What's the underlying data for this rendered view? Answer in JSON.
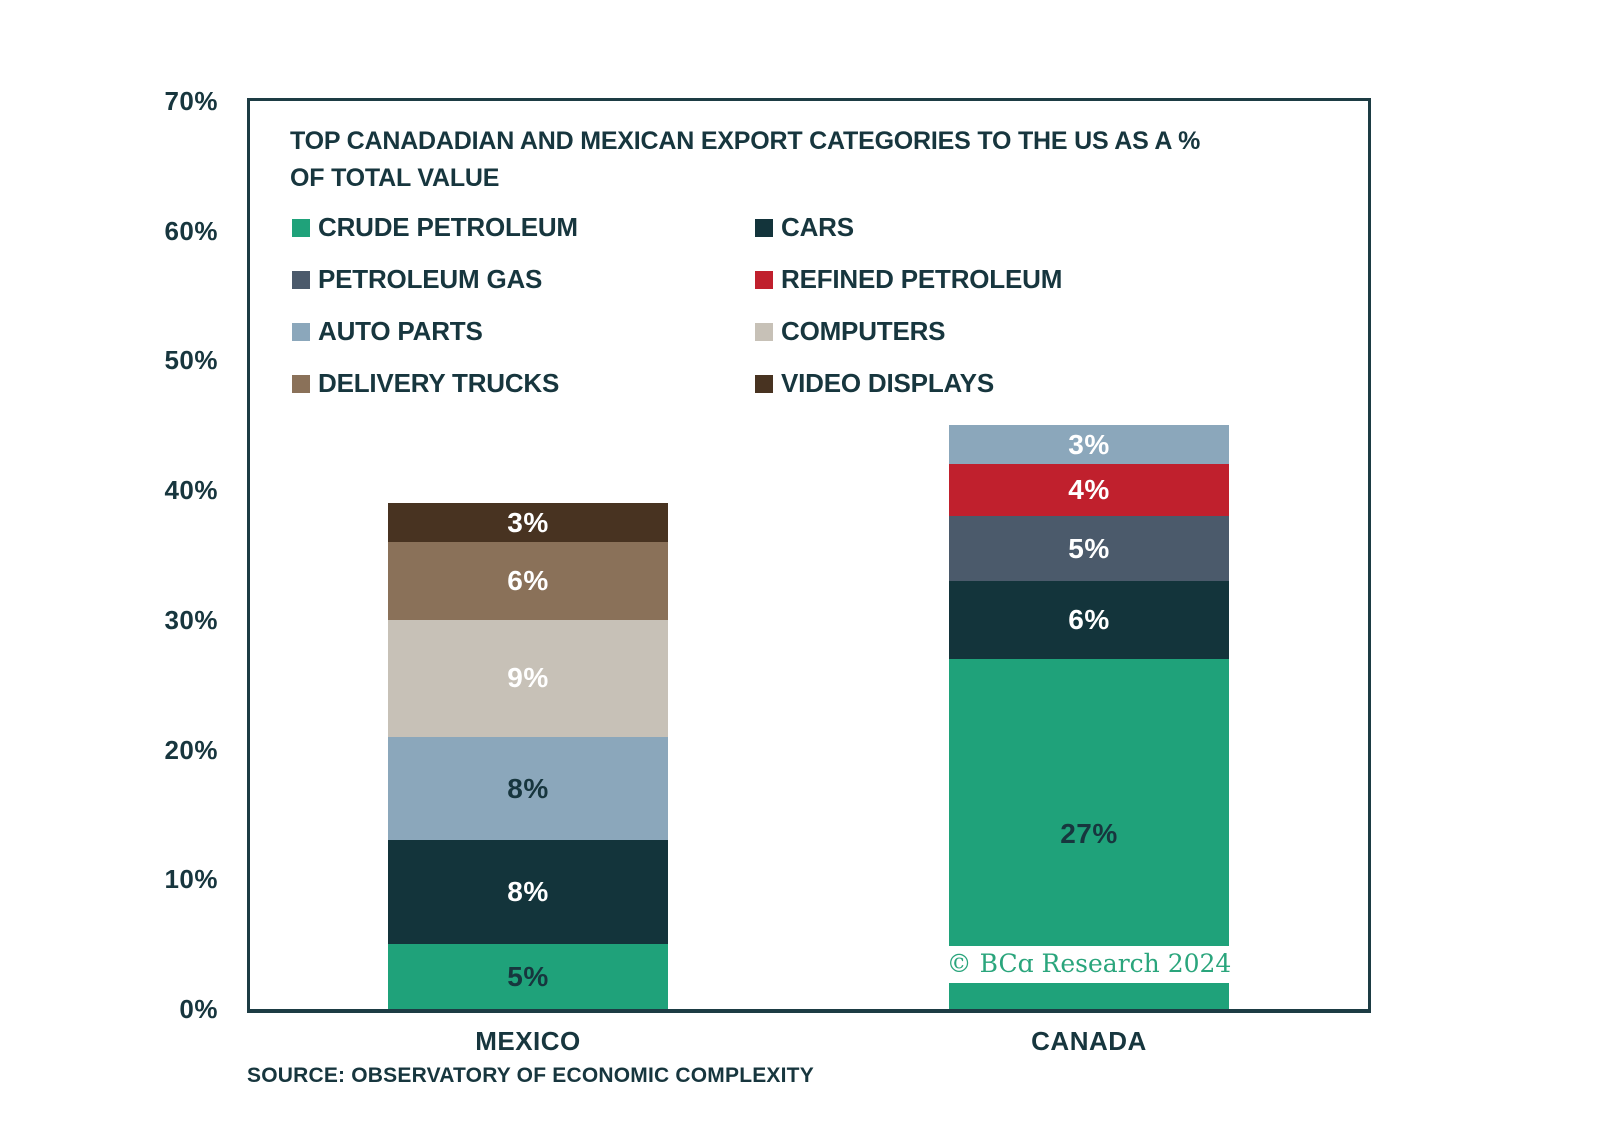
{
  "page": {
    "background": "#ffffff"
  },
  "source": {
    "text": "SOURCE: OBSERVATORY OF ECONOMIC COMPLEXITY"
  },
  "watermark": {
    "prefix": "© BC",
    "alpha": "ɑ",
    "suffix": " Research 2024",
    "full_text": "© BCɑ Research 2024",
    "color": "#2aa57c"
  },
  "chart_data": {
    "type": "bar",
    "stacked": true,
    "title": "TOP CANADADIAN AND MEXICAN EXPORT CATEGORIES TO THE US AS A %\nOF TOTAL VALUE",
    "categories": [
      "MEXICO",
      "CANADA"
    ],
    "xlabel": "",
    "ylabel": "",
    "ylim": [
      0,
      70
    ],
    "y_ticks": [
      "0%",
      "10%",
      "20%",
      "30%",
      "40%",
      "50%",
      "60%",
      "70%"
    ],
    "grid": false,
    "legend_position": "inside top-left, two columns",
    "legend_items": [
      "CRUDE PETROLEUM",
      "CARS",
      "PETROLEUM GAS",
      "REFINED PETROLEUM",
      "AUTO PARTS",
      "COMPUTERS",
      "DELIVERY TRUCKS",
      "VIDEO DISPLAYS"
    ],
    "series_colors": {
      "CRUDE PETROLEUM": "#1fa27a",
      "CARS": "#13343b",
      "PETROLEUM GAS": "#4b5a6b",
      "REFINED PETROLEUM": "#c0202d",
      "AUTO PARTS": "#8ba7bb",
      "COMPUTERS": "#c7c1b7",
      "DELIVERY TRUCKS": "#8a7159",
      "VIDEO DISPLAYS": "#483321"
    },
    "series": [
      {
        "name": "CRUDE PETROLEUM",
        "values": [
          5,
          27
        ]
      },
      {
        "name": "CARS",
        "values": [
          8,
          6
        ]
      },
      {
        "name": "PETROLEUM GAS",
        "values": [
          0,
          5
        ]
      },
      {
        "name": "REFINED PETROLEUM",
        "values": [
          0,
          4
        ]
      },
      {
        "name": "AUTO PARTS",
        "values": [
          8,
          3
        ]
      },
      {
        "name": "COMPUTERS",
        "values": [
          9,
          0
        ]
      },
      {
        "name": "DELIVERY TRUCKS",
        "values": [
          6,
          0
        ]
      },
      {
        "name": "VIDEO DISPLAYS",
        "values": [
          3,
          0
        ]
      }
    ],
    "bars": [
      {
        "category": "MEXICO",
        "total": 39,
        "segments": [
          {
            "series": "CRUDE PETROLEUM",
            "value": 5,
            "label": "5%",
            "label_style": "dark"
          },
          {
            "series": "CARS",
            "value": 8,
            "label": "8%",
            "label_style": "light"
          },
          {
            "series": "AUTO PARTS",
            "value": 8,
            "label": "8%",
            "label_style": "dark"
          },
          {
            "series": "COMPUTERS",
            "value": 9,
            "label": "9%",
            "label_style": "light"
          },
          {
            "series": "DELIVERY TRUCKS",
            "value": 6,
            "label": "6%",
            "label_style": "light"
          },
          {
            "series": "VIDEO DISPLAYS",
            "value": 3,
            "label": "3%",
            "label_style": "light"
          }
        ]
      },
      {
        "category": "CANADA",
        "total": 45,
        "segments": [
          {
            "series": "CRUDE PETROLEUM",
            "value": 27,
            "label": "27%",
            "label_style": "dark"
          },
          {
            "series": "CARS",
            "value": 6,
            "label": "6%",
            "label_style": "light"
          },
          {
            "series": "PETROLEUM GAS",
            "value": 5,
            "label": "5%",
            "label_style": "light"
          },
          {
            "series": "REFINED PETROLEUM",
            "value": 4,
            "label": "4%",
            "label_style": "light"
          },
          {
            "series": "AUTO PARTS",
            "value": 3,
            "label": "3%",
            "label_style": "light"
          }
        ]
      }
    ],
    "colors": {
      "text": "#17363e",
      "border": "#1d3c44",
      "label_dark": "#17363e",
      "label_light": "#ffffff"
    }
  }
}
